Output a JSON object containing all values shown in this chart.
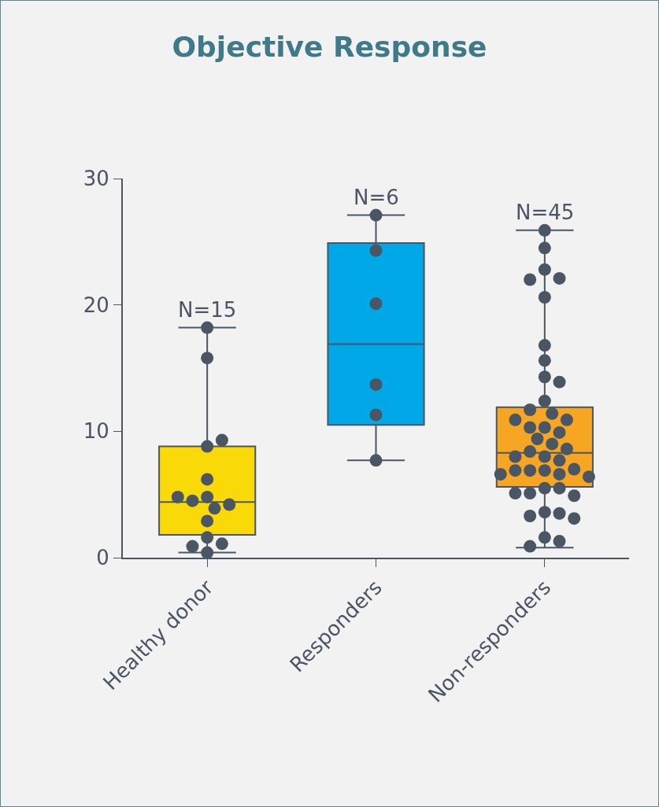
{
  "chart_data": {
    "type": "box",
    "title": "Objective Response",
    "categories": [
      "Healthy donor",
      "Responders",
      "Non-responders"
    ],
    "colors": [
      "#f9d908",
      "#00a8e8",
      "#f6a623"
    ],
    "boxes": [
      {
        "low": 0.4,
        "q1": 1.8,
        "median": 4.4,
        "q3": 8.8,
        "high": 18.2
      },
      {
        "low": 7.7,
        "q1": 10.5,
        "median": 16.9,
        "q3": 24.9,
        "high": 27.1
      },
      {
        "low": 0.8,
        "q1": 5.6,
        "median": 8.3,
        "q3": 11.9,
        "high": 25.9
      }
    ],
    "series": [
      {
        "type": "scatter",
        "color": "#4a5663",
        "x": [
          "Healthy donor",
          "Healthy donor",
          "Healthy donor",
          "Healthy donor",
          "Healthy donor",
          "Healthy donor",
          "Healthy donor",
          "Healthy donor",
          "Healthy donor",
          "Healthy donor",
          "Healthy donor",
          "Healthy donor",
          "Healthy donor",
          "Healthy donor",
          "Healthy donor",
          "Responders",
          "Responders",
          "Responders",
          "Responders",
          "Responders",
          "Responders",
          "Non-responders",
          "Non-responders",
          "Non-responders",
          "Non-responders",
          "Non-responders",
          "Non-responders",
          "Non-responders",
          "Non-responders",
          "Non-responders",
          "Non-responders",
          "Non-responders",
          "Non-responders",
          "Non-responders",
          "Non-responders",
          "Non-responders",
          "Non-responders",
          "Non-responders",
          "Non-responders",
          "Non-responders",
          "Non-responders",
          "Non-responders",
          "Non-responders",
          "Non-responders",
          "Non-responders",
          "Non-responders",
          "Non-responders",
          "Non-responders",
          "Non-responders",
          "Non-responders",
          "Non-responders",
          "Non-responders",
          "Non-responders",
          "Non-responders",
          "Non-responders",
          "Non-responders",
          "Non-responders",
          "Non-responders",
          "Non-responders",
          "Non-responders",
          "Non-responders",
          "Non-responders",
          "Non-responders",
          "Non-responders",
          "Non-responders"
        ],
        "values": [
          18.2,
          15.8,
          8.8,
          9.3,
          6.2,
          4.8,
          3.9,
          4.5,
          4.2,
          4.8,
          2.9,
          1.6,
          1.1,
          0.9,
          0.4,
          27.1,
          24.3,
          20.1,
          13.7,
          11.3,
          7.7,
          25.9,
          24.5,
          22.8,
          22.1,
          22.0,
          20.6,
          16.8,
          15.6,
          14.3,
          13.9,
          12.4,
          11.4,
          11.7,
          10.9,
          10.3,
          10.9,
          10.3,
          9.9,
          9.4,
          9.0,
          8.6,
          8.4,
          8.0,
          8.0,
          7.7,
          6.9,
          6.9,
          7.0,
          6.9,
          6.6,
          6.4,
          6.6,
          5.5,
          5.5,
          5.1,
          4.9,
          5.1,
          3.6,
          3.5,
          3.3,
          3.1,
          1.6,
          1.3,
          0.9
        ]
      }
    ],
    "annotations": [
      {
        "text": "N=15",
        "x": "Healthy donor",
        "y": 18.2
      },
      {
        "text": "N=6",
        "x": "Responders",
        "y": 27.1
      },
      {
        "text": "N=45",
        "x": "Non-responders",
        "y": 25.9
      }
    ],
    "ylim": [
      0,
      30
    ],
    "yticks": [
      0,
      10,
      20,
      30
    ],
    "grid": false,
    "marker": "circle"
  }
}
